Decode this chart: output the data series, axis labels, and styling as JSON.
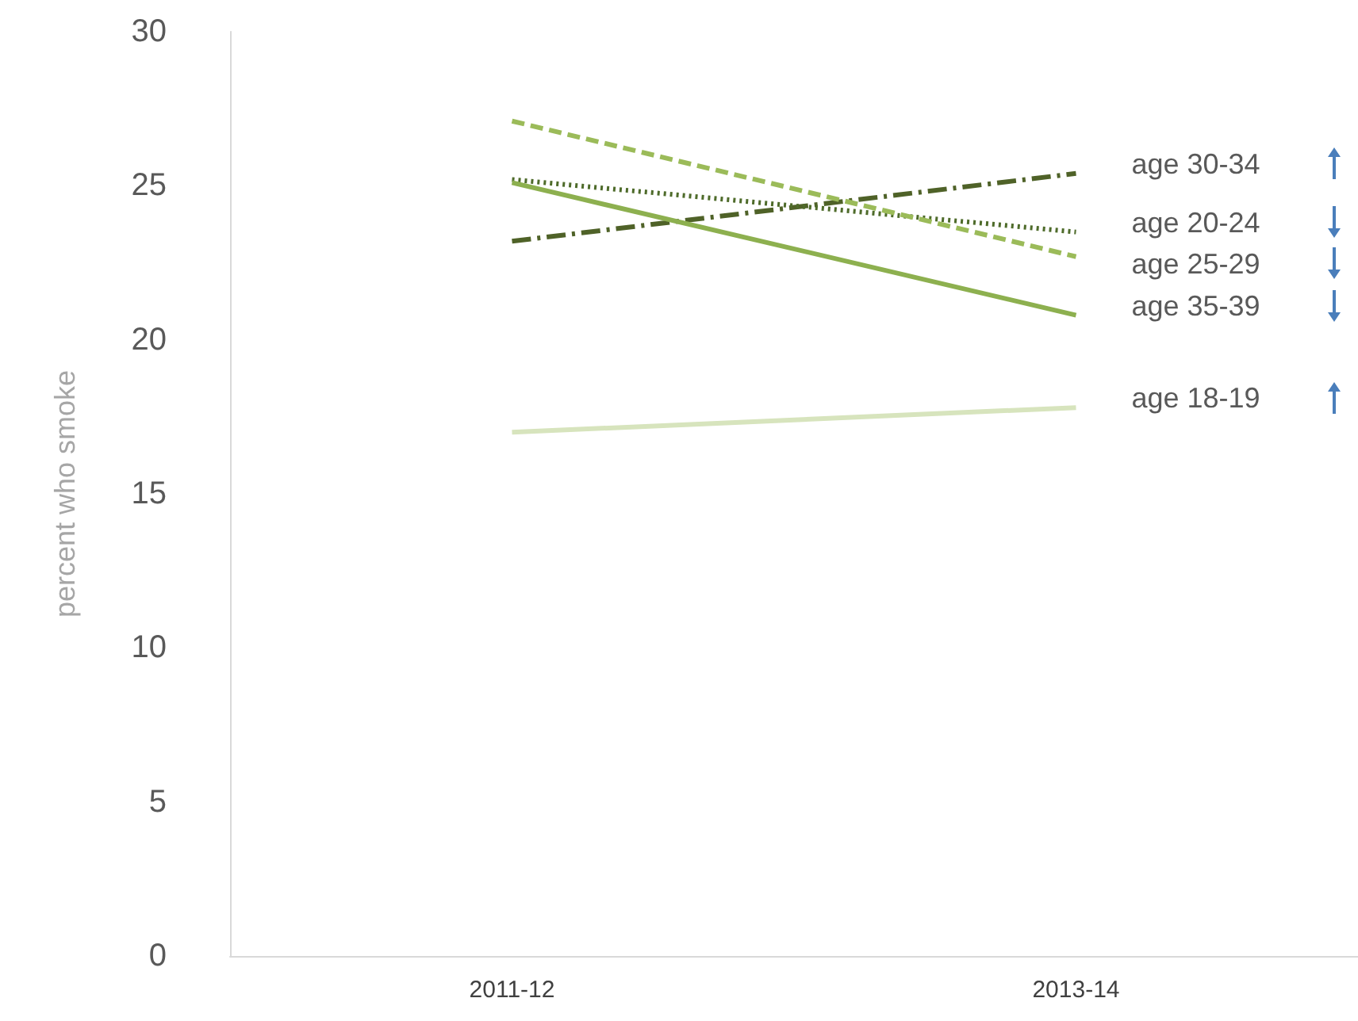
{
  "chart_data": {
    "type": "line",
    "ylabel": "percent who smoke",
    "categories": [
      "2011-12",
      "2013-14"
    ],
    "series": [
      {
        "name": "age 30-34",
        "color": "#4f6228",
        "values": [
          23.2,
          25.4
        ],
        "line_style": "dashdot"
      },
      {
        "name": "age 20-24",
        "color": "#4e6b2a",
        "values": [
          25.2,
          23.5
        ],
        "line_style": "dotted"
      },
      {
        "name": "age 25-29",
        "color": "#9bbb59",
        "values": [
          27.1,
          22.7
        ],
        "line_style": "dashed"
      },
      {
        "name": "age 35-39",
        "color": "#8db04f",
        "values": [
          25.1,
          20.8
        ],
        "line_style": "solid"
      },
      {
        "name": "age 18-19",
        "color": "#d7e4bd",
        "values": [
          17.0,
          17.8
        ],
        "line_style": "solid"
      }
    ],
    "ylim": [
      0,
      30
    ],
    "yticks": [
      0,
      5,
      10,
      15,
      20,
      25,
      30
    ],
    "grid": false,
    "legend": false,
    "marker": "none"
  }
}
